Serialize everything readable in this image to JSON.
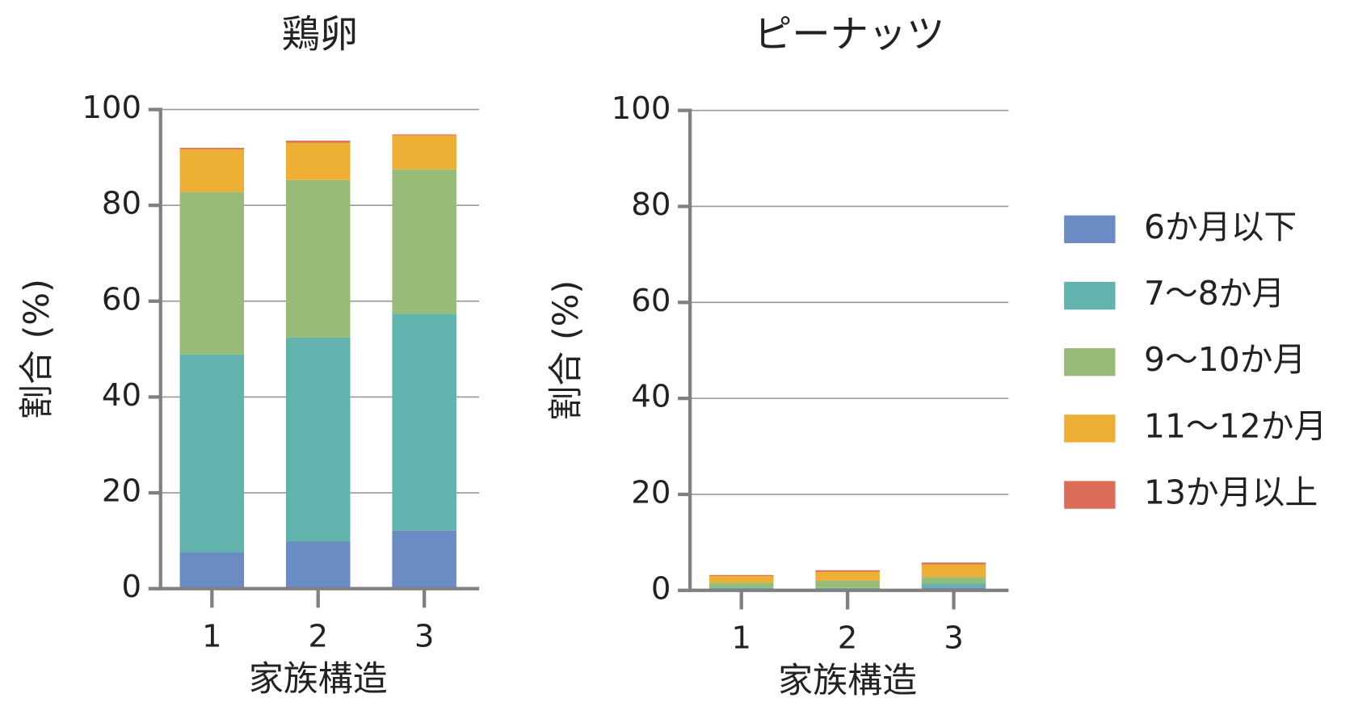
{
  "chart_data": [
    {
      "type": "bar",
      "stacked": true,
      "title": "鶏卵",
      "xlabel": "家族構造",
      "ylabel": "割合 (%)",
      "categories": [
        "1",
        "2",
        "3"
      ],
      "ylim": [
        0,
        100
      ],
      "yticks": [
        0,
        20,
        40,
        60,
        80,
        100
      ],
      "grid": true,
      "series": [
        {
          "color": "#6a8bc3",
          "values": [
            7.6,
            9.8,
            12.1
          ]
        },
        {
          "color": "#62b2ae",
          "values": [
            41.3,
            42.6,
            45.3
          ]
        },
        {
          "color": "#99bb78",
          "values": [
            33.9,
            32.9,
            30.1
          ]
        },
        {
          "color": "#edb035",
          "values": [
            8.9,
            7.8,
            7.1
          ]
        },
        {
          "color": "#dd6c58",
          "values": [
            0.3,
            0.4,
            0.2
          ]
        }
      ]
    },
    {
      "type": "bar",
      "stacked": true,
      "title": "ピーナッツ",
      "xlabel": "家族構造",
      "ylabel": "割合 (%)",
      "categories": [
        "1",
        "2",
        "3"
      ],
      "ylim": [
        0,
        100
      ],
      "yticks": [
        0,
        20,
        40,
        60,
        80,
        100
      ],
      "grid": true,
      "legend": "right",
      "series": [
        {
          "name": "6か月以下",
          "color": "#6a8bc3",
          "values": [
            0.1,
            0.1,
            0.6
          ]
        },
        {
          "name": "7〜8か月",
          "color": "#62b2ae",
          "values": [
            0.5,
            0.4,
            0.8
          ]
        },
        {
          "name": "9〜10か月",
          "color": "#99bb78",
          "values": [
            1.0,
            1.5,
            1.4
          ]
        },
        {
          "name": "11〜12か月",
          "color": "#edb035",
          "values": [
            1.4,
            1.9,
            2.6
          ]
        },
        {
          "name": "13か月以上",
          "color": "#dd6c58",
          "values": [
            0.2,
            0.3,
            0.4
          ]
        }
      ]
    }
  ]
}
